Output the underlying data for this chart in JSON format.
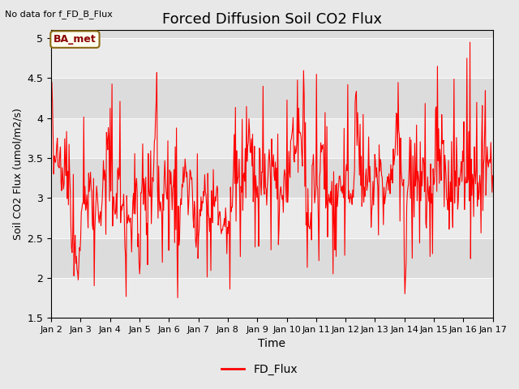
{
  "title": "Forced Diffusion Soil CO2 Flux",
  "xlabel": "Time",
  "ylabel": "Soil CO2 Flux (umol/m2/s)",
  "top_left_text": "No data for f_FD_B_Flux",
  "annotation_box_text": "BA_met",
  "legend_label": "FD_Flux",
  "line_color": "red",
  "ylim": [
    1.5,
    5.1
  ],
  "yticks": [
    1.5,
    2.0,
    2.5,
    3.0,
    3.5,
    4.0,
    4.5,
    5.0
  ],
  "bg_color": "#e8e8e8",
  "plot_bg_color": "#dcdcdc",
  "band_color": "#ebebeb",
  "annotation_bg": "#fffff0",
  "annotation_border": "#8B6914",
  "seed": 12345,
  "n_points": 720,
  "x_start_day": 2,
  "x_end_day": 17,
  "xtick_labels": [
    "Jan 2",
    "Jan 3",
    "Jan 4",
    "Jan 5",
    "Jan 6",
    "Jan 7",
    "Jan 8",
    "Jan 9",
    "Jan 10",
    "Jan 11",
    "Jan 12",
    "Jan 13",
    "Jan 14",
    "Jan 15",
    "Jan 16",
    "Jan 17"
  ],
  "xtick_positions": [
    2,
    3,
    4,
    5,
    6,
    7,
    8,
    9,
    10,
    11,
    12,
    13,
    14,
    15,
    16,
    17
  ]
}
